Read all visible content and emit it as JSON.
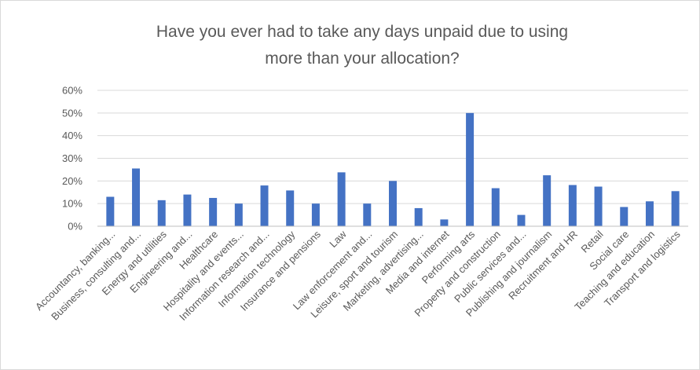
{
  "chart_data": {
    "type": "bar",
    "title_lines": [
      "Have you ever had to take any days unpaid due to using",
      "more than your allocation?"
    ],
    "xlabel": "",
    "ylabel": "",
    "ylim": [
      0,
      0.6
    ],
    "yticks": [
      0,
      0.1,
      0.2,
      0.3,
      0.4,
      0.5,
      0.6
    ],
    "ytick_labels": [
      "0%",
      "10%",
      "20%",
      "30%",
      "40%",
      "50%",
      "60%"
    ],
    "grid": true,
    "legend": "none",
    "bar_color": "#4472c4",
    "categories": [
      "Accountancy, banking...",
      "Business, consulting and...",
      "Energy and utilities",
      "Engineering and...",
      "Healthcare",
      "Hospitality and events...",
      "Information research and...",
      "Information technology",
      "Insurance and pensions",
      "Law",
      "Law enforcement and...",
      "Leisure, sport and tourism",
      "Marketing, advertising...",
      "Media and internet",
      "Performing arts",
      "Property and construction",
      "Public services and...",
      "Publishing and journalism",
      "Recruitment and HR",
      "Retail",
      "Social care",
      "Teaching and education",
      "Transport and logistics"
    ],
    "values": [
      0.13,
      0.255,
      0.115,
      0.14,
      0.125,
      0.1,
      0.18,
      0.158,
      0.1,
      0.238,
      0.1,
      0.2,
      0.08,
      0.03,
      0.5,
      0.168,
      0.05,
      0.225,
      0.182,
      0.175,
      0.085,
      0.11,
      0.155
    ]
  }
}
